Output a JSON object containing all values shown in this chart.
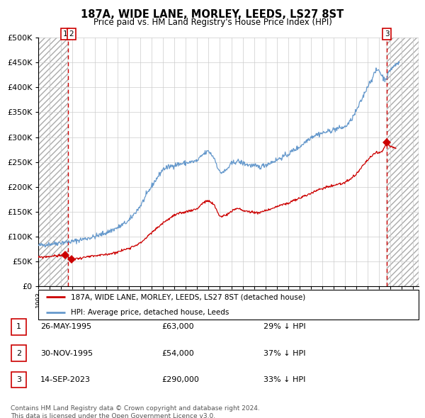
{
  "title": "187A, WIDE LANE, MORLEY, LEEDS, LS27 8ST",
  "subtitle": "Price paid vs. HM Land Registry's House Price Index (HPI)",
  "legend_label_red": "187A, WIDE LANE, MORLEY, LEEDS, LS27 8ST (detached house)",
  "legend_label_blue": "HPI: Average price, detached house, Leeds",
  "table_rows": [
    {
      "num": "1",
      "date": "26-MAY-1995",
      "price": "£63,000",
      "hpi": "29% ↓ HPI"
    },
    {
      "num": "2",
      "date": "30-NOV-1995",
      "price": "£54,000",
      "hpi": "37% ↓ HPI"
    },
    {
      "num": "3",
      "date": "14-SEP-2023",
      "price": "£290,000",
      "hpi": "33% ↓ HPI"
    }
  ],
  "footnote": "Contains HM Land Registry data © Crown copyright and database right 2024.\nThis data is licensed under the Open Government Licence v3.0.",
  "color_red": "#cc0000",
  "color_blue": "#6699cc",
  "ylim": [
    0,
    500000
  ],
  "yticks": [
    0,
    50000,
    100000,
    150000,
    200000,
    250000,
    300000,
    350000,
    400000,
    450000,
    500000
  ],
  "sale1_date": 1995.38,
  "sale1_price": 63000,
  "sale2_date": 1995.92,
  "sale2_price": 54000,
  "sale3_date": 2023.71,
  "sale3_price": 290000,
  "vline1_date": 1995.65,
  "vline3_date": 2023.71,
  "xlim_left": 1993.0,
  "xlim_right": 2026.5,
  "hpi_anchors": [
    [
      1993.0,
      82000
    ],
    [
      1994.0,
      85000
    ],
    [
      1995.0,
      88000
    ],
    [
      1995.5,
      89000
    ],
    [
      1996.0,
      90000
    ],
    [
      1997.0,
      95000
    ],
    [
      1998.0,
      100000
    ],
    [
      1999.0,
      108000
    ],
    [
      2000.0,
      118000
    ],
    [
      2001.0,
      132000
    ],
    [
      2002.0,
      162000
    ],
    [
      2003.0,
      202000
    ],
    [
      2004.0,
      236000
    ],
    [
      2005.0,
      244000
    ],
    [
      2006.0,
      248000
    ],
    [
      2007.0,
      252000
    ],
    [
      2007.5,
      265000
    ],
    [
      2008.0,
      272000
    ],
    [
      2008.5,
      258000
    ],
    [
      2009.0,
      228000
    ],
    [
      2009.5,
      232000
    ],
    [
      2010.0,
      246000
    ],
    [
      2010.5,
      252000
    ],
    [
      2011.0,
      248000
    ],
    [
      2011.5,
      244000
    ],
    [
      2012.0,
      242000
    ],
    [
      2012.5,
      240000
    ],
    [
      2013.0,
      244000
    ],
    [
      2013.5,
      249000
    ],
    [
      2014.0,
      254000
    ],
    [
      2014.5,
      260000
    ],
    [
      2015.0,
      265000
    ],
    [
      2015.5,
      274000
    ],
    [
      2016.0,
      280000
    ],
    [
      2016.5,
      290000
    ],
    [
      2017.0,
      300000
    ],
    [
      2017.5,
      305000
    ],
    [
      2018.0,
      308000
    ],
    [
      2018.5,
      311000
    ],
    [
      2019.0,
      315000
    ],
    [
      2019.5,
      318000
    ],
    [
      2020.0,
      320000
    ],
    [
      2020.5,
      332000
    ],
    [
      2021.0,
      352000
    ],
    [
      2021.5,
      376000
    ],
    [
      2022.0,
      402000
    ],
    [
      2022.5,
      422000
    ],
    [
      2022.7,
      432000
    ],
    [
      2023.0,
      436000
    ],
    [
      2023.2,
      426000
    ],
    [
      2023.5,
      416000
    ],
    [
      2023.7,
      420000
    ],
    [
      2024.0,
      436000
    ],
    [
      2024.5,
      446000
    ],
    [
      2024.8,
      450000
    ]
  ],
  "red_anchors": [
    [
      1993.0,
      58000
    ],
    [
      1995.38,
      63000
    ],
    [
      1995.92,
      54000
    ],
    [
      1996.5,
      56000
    ],
    [
      1997.0,
      58000
    ],
    [
      1998.0,
      61000
    ],
    [
      1999.0,
      64000
    ],
    [
      2000.0,
      69000
    ],
    [
      2001.0,
      77000
    ],
    [
      2002.0,
      87000
    ],
    [
      2003.0,
      108000
    ],
    [
      2004.0,
      128000
    ],
    [
      2005.0,
      143000
    ],
    [
      2006.0,
      150000
    ],
    [
      2007.0,
      156000
    ],
    [
      2007.5,
      168000
    ],
    [
      2008.0,
      172000
    ],
    [
      2008.5,
      163000
    ],
    [
      2009.0,
      140000
    ],
    [
      2009.5,
      143000
    ],
    [
      2010.0,
      150000
    ],
    [
      2010.5,
      157000
    ],
    [
      2011.0,
      153000
    ],
    [
      2011.5,
      150000
    ],
    [
      2012.0,
      149000
    ],
    [
      2012.5,
      148000
    ],
    [
      2013.0,
      152000
    ],
    [
      2013.5,
      156000
    ],
    [
      2014.0,
      160000
    ],
    [
      2014.5,
      164000
    ],
    [
      2015.0,
      167000
    ],
    [
      2015.5,
      172000
    ],
    [
      2016.0,
      177000
    ],
    [
      2016.5,
      182000
    ],
    [
      2017.0,
      187000
    ],
    [
      2017.5,
      192000
    ],
    [
      2018.0,
      197000
    ],
    [
      2018.5,
      200000
    ],
    [
      2019.0,
      203000
    ],
    [
      2019.5,
      206000
    ],
    [
      2020.0,
      208000
    ],
    [
      2020.5,
      215000
    ],
    [
      2021.0,
      225000
    ],
    [
      2021.5,
      240000
    ],
    [
      2022.0,
      254000
    ],
    [
      2022.5,
      264000
    ],
    [
      2022.8,
      270000
    ],
    [
      2023.0,
      268000
    ],
    [
      2023.3,
      271000
    ],
    [
      2023.71,
      290000
    ],
    [
      2024.0,
      282000
    ],
    [
      2024.5,
      277000
    ]
  ]
}
